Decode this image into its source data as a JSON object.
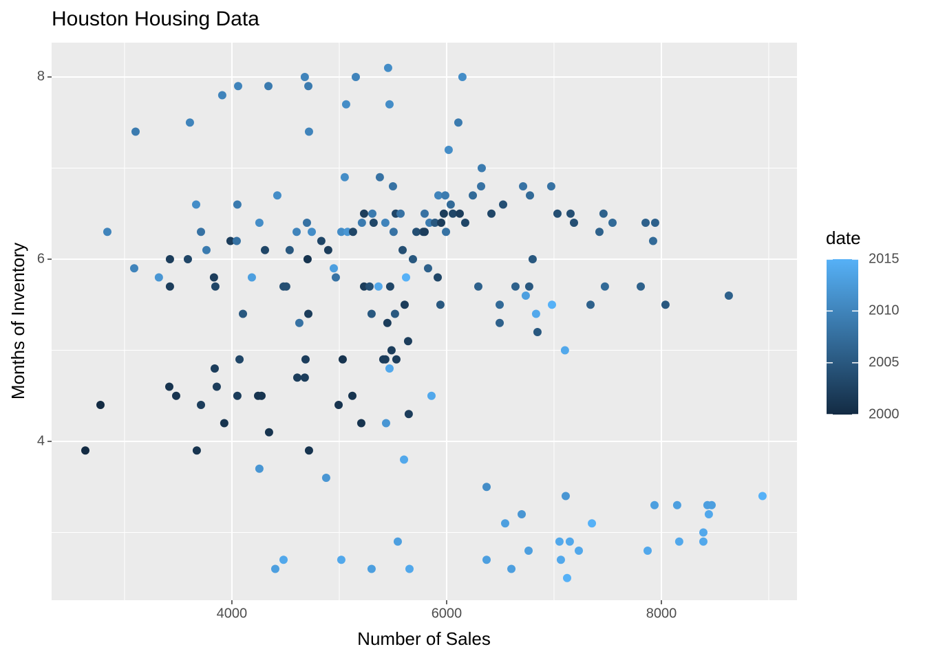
{
  "chart_data": {
    "type": "scatter",
    "title": "Houston Housing Data",
    "x_label": "Number of Sales",
    "y_label": "Months of Inventory",
    "xlim": [
      2321,
      9263
    ],
    "ylim": [
      2.257,
      8.377
    ],
    "xticks": [
      4000,
      6000,
      8000
    ],
    "yticks": [
      4,
      6,
      8
    ],
    "xminor": [
      3000,
      5000,
      7000,
      9000
    ],
    "yminor": [
      3,
      5,
      7
    ],
    "grid": true,
    "color_scale": {
      "title": "date",
      "low": "#132B43",
      "high": "#56B1F7",
      "lim": [
        2000,
        2015
      ],
      "ticks": [
        2000,
        2005,
        2010,
        2015
      ]
    },
    "series": [
      {
        "name": "sales",
        "x": [
          2635,
          2776,
          2840,
          3090,
          3103,
          3320,
          3417,
          3423,
          3423,
          3481,
          3590,
          3609,
          3667,
          3673,
          3712,
          3712,
          3763,
          3833,
          3846,
          3840,
          3859,
          3910,
          3929,
          3987,
          4045,
          4051,
          4058,
          4051,
          4071,
          4103,
          4186,
          4244,
          4276,
          4256,
          4256,
          4308,
          4340,
          4346,
          4404,
          4423,
          4481,
          4481,
          4506,
          4538,
          4609,
          4628,
          4603,
          4679,
          4679,
          4686,
          4699,
          4705,
          4712,
          4712,
          4718,
          4718,
          4744,
          4833,
          4878,
          4897,
          4949,
          4968,
          4994,
          5019,
          5019,
          5032,
          5051,
          5064,
          5077,
          5122,
          5128,
          5154,
          5205,
          5211,
          5231,
          5231,
          5282,
          5301,
          5301,
          5308,
          5320,
          5365,
          5378,
          5410,
          5429,
          5429,
          5436,
          5448,
          5455,
          5468,
          5468,
          5474,
          5487,
          5500,
          5506,
          5519,
          5532,
          5526,
          5545,
          5571,
          5590,
          5603,
          5609,
          5622,
          5641,
          5647,
          5654,
          5686,
          5718,
          5782,
          5795,
          5795,
          5827,
          5840,
          5859,
          5891,
          5917,
          5923,
          5942,
          5949,
          5974,
          5987,
          5994,
          6019,
          6038,
          6058,
          6109,
          6122,
          6147,
          6173,
          6244,
          6295,
          6321,
          6327,
          6372,
          6372,
          6417,
          6494,
          6494,
          6526,
          6545,
          6603,
          6641,
          6699,
          6712,
          6737,
          6763,
          6769,
          6776,
          6801,
          6833,
          6846,
          6974,
          6981,
          7032,
          7051,
          7064,
          7102,
          7109,
          7122,
          7147,
          7154,
          7186,
          7231,
          7340,
          7353,
          7423,
          7461,
          7474,
          7545,
          7808,
          7853,
          7872,
          7923,
          7936,
          7942,
          8038,
          8147,
          8166,
          8391,
          8391,
          8429,
          8442,
          8468,
          8628,
          8942
        ],
        "values": [
          3.9,
          4.4,
          6.3,
          5.9,
          7.4,
          5.8,
          4.6,
          6.0,
          5.7,
          4.5,
          6.0,
          7.5,
          6.6,
          3.9,
          4.4,
          6.3,
          6.1,
          5.8,
          5.7,
          4.8,
          4.6,
          7.8,
          4.2,
          6.2,
          6.2,
          6.6,
          7.9,
          4.5,
          4.9,
          5.4,
          5.8,
          4.5,
          4.5,
          3.7,
          6.4,
          6.1,
          7.9,
          4.1,
          2.6,
          6.7,
          2.7,
          5.7,
          5.7,
          6.1,
          4.7,
          5.3,
          6.3,
          8.0,
          4.7,
          4.9,
          6.4,
          6.0,
          7.9,
          5.4,
          7.4,
          3.9,
          6.3,
          6.2,
          3.6,
          6.1,
          5.9,
          5.8,
          4.4,
          2.7,
          6.3,
          4.9,
          6.9,
          7.7,
          6.3,
          4.5,
          6.3,
          8.0,
          4.2,
          6.4,
          6.5,
          5.7,
          5.7,
          5.4,
          2.6,
          6.5,
          6.4,
          5.7,
          6.9,
          4.9,
          4.9,
          6.4,
          4.2,
          5.3,
          8.1,
          7.7,
          4.8,
          5.7,
          5.0,
          6.8,
          6.3,
          5.4,
          4.9,
          6.5,
          2.9,
          6.5,
          6.1,
          3.8,
          5.5,
          5.8,
          5.1,
          4.3,
          2.6,
          6.0,
          6.3,
          6.3,
          6.5,
          6.3,
          5.9,
          6.4,
          4.5,
          6.4,
          5.8,
          6.7,
          5.5,
          6.4,
          6.5,
          6.7,
          6.3,
          7.2,
          6.6,
          6.5,
          7.5,
          6.5,
          8.0,
          6.4,
          6.7,
          5.7,
          6.8,
          7.0,
          3.5,
          2.7,
          6.5,
          5.5,
          5.3,
          6.6,
          3.1,
          2.6,
          5.7,
          3.2,
          6.8,
          5.6,
          2.8,
          5.7,
          6.7,
          6.0,
          5.4,
          5.2,
          6.8,
          5.5,
          6.5,
          2.9,
          2.7,
          5.0,
          3.4,
          2.5,
          2.9,
          6.5,
          6.4,
          2.8,
          5.5,
          3.1,
          6.3,
          6.5,
          5.7,
          6.4,
          5.7,
          6.4,
          2.8,
          6.2,
          3.3,
          6.4,
          5.5,
          3.3,
          2.9,
          3.0,
          2.9,
          3.3,
          3.2,
          3.3,
          5.6,
          3.4
        ],
        "date": [
          2000,
          2000,
          2010,
          2010,
          2009,
          2012,
          2001,
          2002,
          2002,
          2001,
          2003,
          2010,
          2011,
          2001,
          2002,
          2008,
          2009,
          2002,
          2003,
          2002,
          2002,
          2010,
          2001,
          2002,
          2008,
          2009,
          2010,
          2002,
          2003,
          2005,
          2013,
          2001,
          2001,
          2012,
          2011,
          2003,
          2009,
          2001,
          2013,
          2011,
          2014,
          2004,
          2004,
          2005,
          2002,
          2008,
          2010,
          2010,
          2002,
          2002,
          2008,
          2001,
          2009,
          2002,
          2010,
          2001,
          2011,
          2003,
          2012,
          2002,
          2013,
          2008,
          2001,
          2014,
          2011,
          2001,
          2011,
          2011,
          2012,
          2001,
          2003,
          2010,
          2001,
          2009,
          2002,
          2002,
          2004,
          2005,
          2013,
          2009,
          2003,
          2014,
          2008,
          2002,
          2002,
          2010,
          2012,
          2002,
          2011,
          2011,
          2014,
          2003,
          2002,
          2008,
          2008,
          2005,
          2002,
          2003,
          2013,
          2008,
          2004,
          2014,
          2002,
          2015,
          2002,
          2002,
          2014,
          2005,
          2004,
          2003,
          2008,
          2002,
          2006,
          2009,
          2014,
          2005,
          2003,
          2010,
          2005,
          2002,
          2002,
          2009,
          2008,
          2011,
          2007,
          2003,
          2009,
          2002,
          2011,
          2003,
          2007,
          2006,
          2008,
          2009,
          2011,
          2013,
          2003,
          2007,
          2006,
          2004,
          2013,
          2013,
          2006,
          2012,
          2008,
          2013,
          2013,
          2005,
          2007,
          2005,
          2014,
          2005,
          2008,
          2015,
          2004,
          2014,
          2014,
          2014,
          2012,
          2015,
          2014,
          2004,
          2004,
          2014,
          2006,
          2015,
          2006,
          2006,
          2007,
          2007,
          2006,
          2006,
          2014,
          2007,
          2013,
          2006,
          2005,
          2013,
          2014,
          2014,
          2014,
          2013,
          2014,
          2013,
          2006,
          2015
        ]
      }
    ]
  }
}
